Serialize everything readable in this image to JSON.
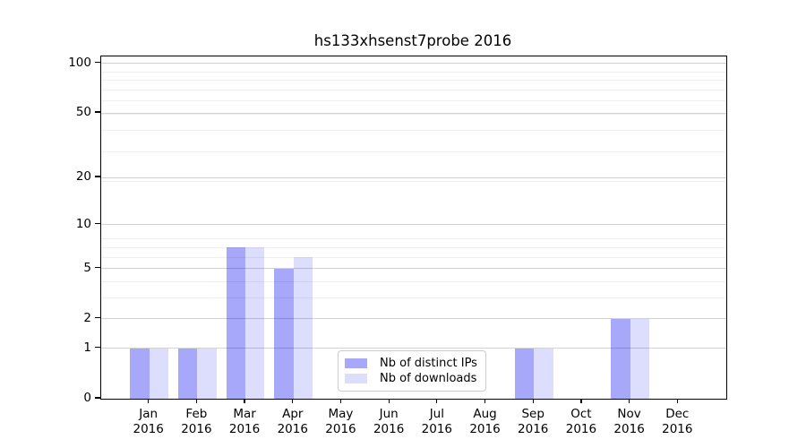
{
  "chart_data": {
    "type": "bar",
    "title": "hs133xhsenst7probe 2016",
    "categories": [
      "Jan",
      "Feb",
      "Mar",
      "Apr",
      "May",
      "Jun",
      "Jul",
      "Aug",
      "Sep",
      "Oct",
      "Nov",
      "Dec"
    ],
    "x_year": "2016",
    "series": [
      {
        "name": "Nb of distinct IPs",
        "color": "rgba(0,0,240,0.34)",
        "values": [
          1,
          1,
          7,
          5,
          0,
          0,
          0,
          0,
          1,
          0,
          2,
          0
        ]
      },
      {
        "name": "Nb of downloads",
        "color": "rgba(0,0,240,0.135)",
        "values": [
          1,
          1,
          7,
          6,
          0,
          0,
          0,
          0,
          1,
          0,
          2,
          0
        ]
      }
    ],
    "xlabel": "",
    "ylabel": "",
    "y_scale": "log10(1+y)",
    "y_ticks": [
      0,
      1,
      2,
      5,
      10,
      20,
      50,
      100
    ],
    "y_minor_ticks_1plusv": [
      2,
      3,
      4,
      5,
      6,
      7,
      8,
      9,
      20,
      30,
      40,
      50,
      60,
      70,
      80,
      90
    ],
    "ylim": [
      0,
      110
    ],
    "grid": "both",
    "legend_position": "lower center",
    "colors": {
      "grid_major": "#d2d2d2",
      "grid_minor": "#efefef",
      "axis": "#000000"
    }
  }
}
